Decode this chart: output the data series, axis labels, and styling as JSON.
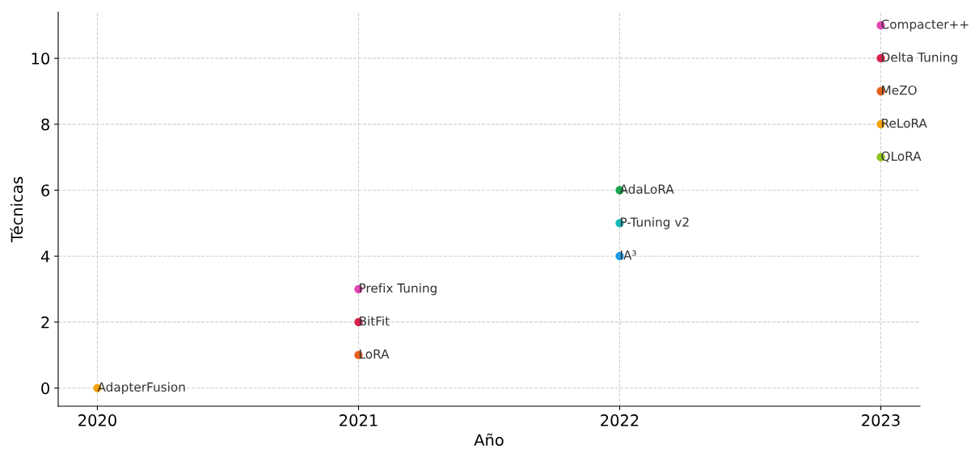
{
  "chart_data": {
    "type": "scatter",
    "xlabel": "Año",
    "ylabel": "Técnicas",
    "x": [
      2020,
      2021,
      2021,
      2021,
      2022,
      2022,
      2022,
      2023,
      2023,
      2023,
      2023,
      2023
    ],
    "values": [
      0,
      1,
      2,
      3,
      4,
      5,
      6,
      7,
      8,
      9,
      10,
      11
    ],
    "colors": [
      "#f5a30a",
      "#e8601c",
      "#d9224a",
      "#e344b4",
      "#1f9be6",
      "#17b8b8",
      "#1aa64a",
      "#8fc31f",
      "#f5a30a",
      "#e8601c",
      "#d9224a",
      "#e344b4"
    ],
    "annotations": [
      {
        "text": "AdapterFusion",
        "x": 2020,
        "y": 0
      },
      {
        "text": "LoRA",
        "x": 2021,
        "y": 1
      },
      {
        "text": "BitFit",
        "x": 2021,
        "y": 2
      },
      {
        "text": "Prefix Tuning",
        "x": 2021,
        "y": 3
      },
      {
        "text": "IA³",
        "x": 2022,
        "y": 4
      },
      {
        "text": "P-Tuning v2",
        "x": 2022,
        "y": 5
      },
      {
        "text": "AdaLoRA",
        "x": 2022,
        "y": 6
      },
      {
        "text": "QLoRA",
        "x": 2023,
        "y": 7
      },
      {
        "text": "ReLoRA",
        "x": 2023,
        "y": 8
      },
      {
        "text": "MeZO",
        "x": 2023,
        "y": 9
      },
      {
        "text": "Delta Tuning",
        "x": 2023,
        "y": 10
      },
      {
        "text": "Compacter++",
        "x": 2023,
        "y": 11
      }
    ],
    "xlim": [
      2019.85,
      2023.15
    ],
    "xticks": [
      2020,
      2021,
      2022,
      2023
    ],
    "ylim": [
      -0.55,
      11.4
    ],
    "yticks": [
      0,
      2,
      4,
      6,
      8,
      10
    ],
    "grid": true,
    "marker": "circle"
  }
}
